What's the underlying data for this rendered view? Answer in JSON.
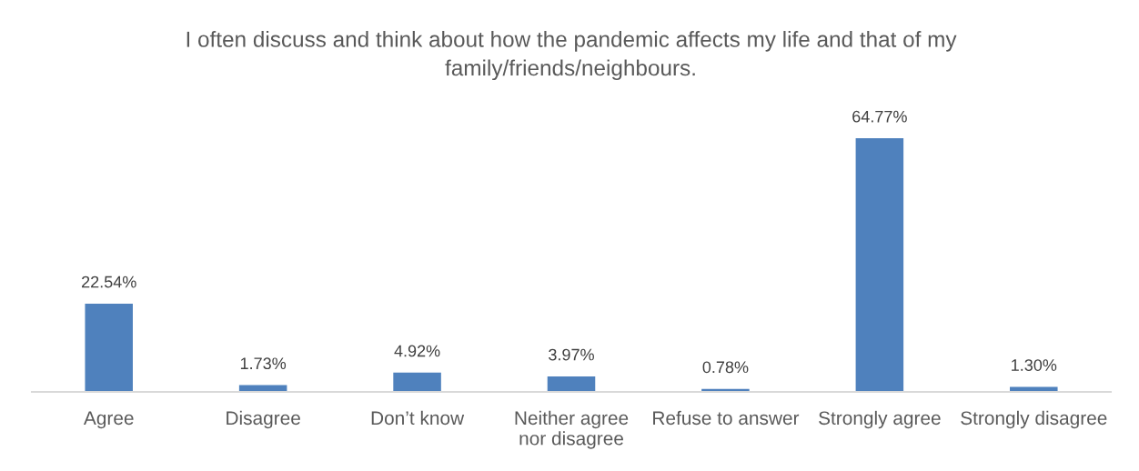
{
  "chart_data": {
    "type": "bar",
    "title": "I often discuss and think about how the pandemic affects my life and that of my\nfamily/friends/neighbours.",
    "categories": [
      "Agree",
      "Disagree",
      "Don’t know",
      "Neither agree\nnor disagree",
      "Refuse to answer",
      "Strongly agree",
      "Strongly disagree"
    ],
    "values": [
      22.54,
      1.73,
      4.92,
      3.97,
      0.78,
      64.77,
      1.3
    ],
    "value_labels": [
      "22.54%",
      "1.73%",
      "4.92%",
      "3.97%",
      "0.78%",
      "64.77%",
      "1.30%"
    ],
    "color": "#4f81bd"
  }
}
